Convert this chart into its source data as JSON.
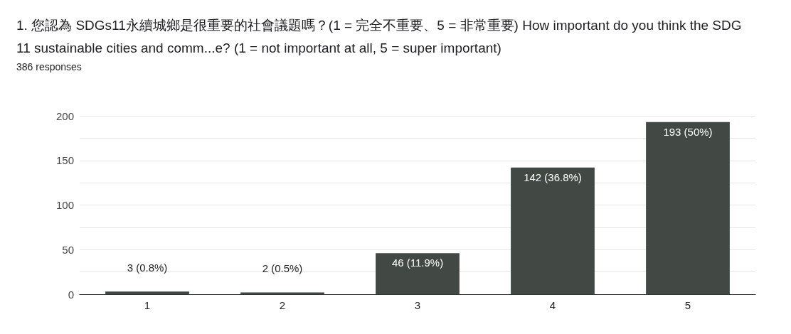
{
  "chart_data": {
    "type": "bar",
    "title": "1. 您認為 SDGs11永續城鄉是很重要的社會議題嗎？(1 = 完全不重要、5 = 非常重要) How important do you think the SDG 11 sustainable cities and comm...e? (1 = not important at all, 5 = super important)",
    "subtitle": "386 responses",
    "categories": [
      "1",
      "2",
      "3",
      "4",
      "5"
    ],
    "values": [
      3,
      2,
      46,
      142,
      193
    ],
    "value_labels": [
      "3 (0.8%)",
      "2 (0.5%)",
      "46 (11.9%)",
      "142 (36.8%)",
      "193 (50%)"
    ],
    "color": "#424944",
    "ylim": [
      0,
      200
    ],
    "yticks": [
      0,
      {
        "value": 25,
        "label": null
      },
      50,
      {
        "value": 75,
        "label": null
      },
      100,
      {
        "value": 125,
        "label": null
      },
      150,
      {
        "value": 175,
        "label": null
      },
      200
    ],
    "grid": true
  }
}
